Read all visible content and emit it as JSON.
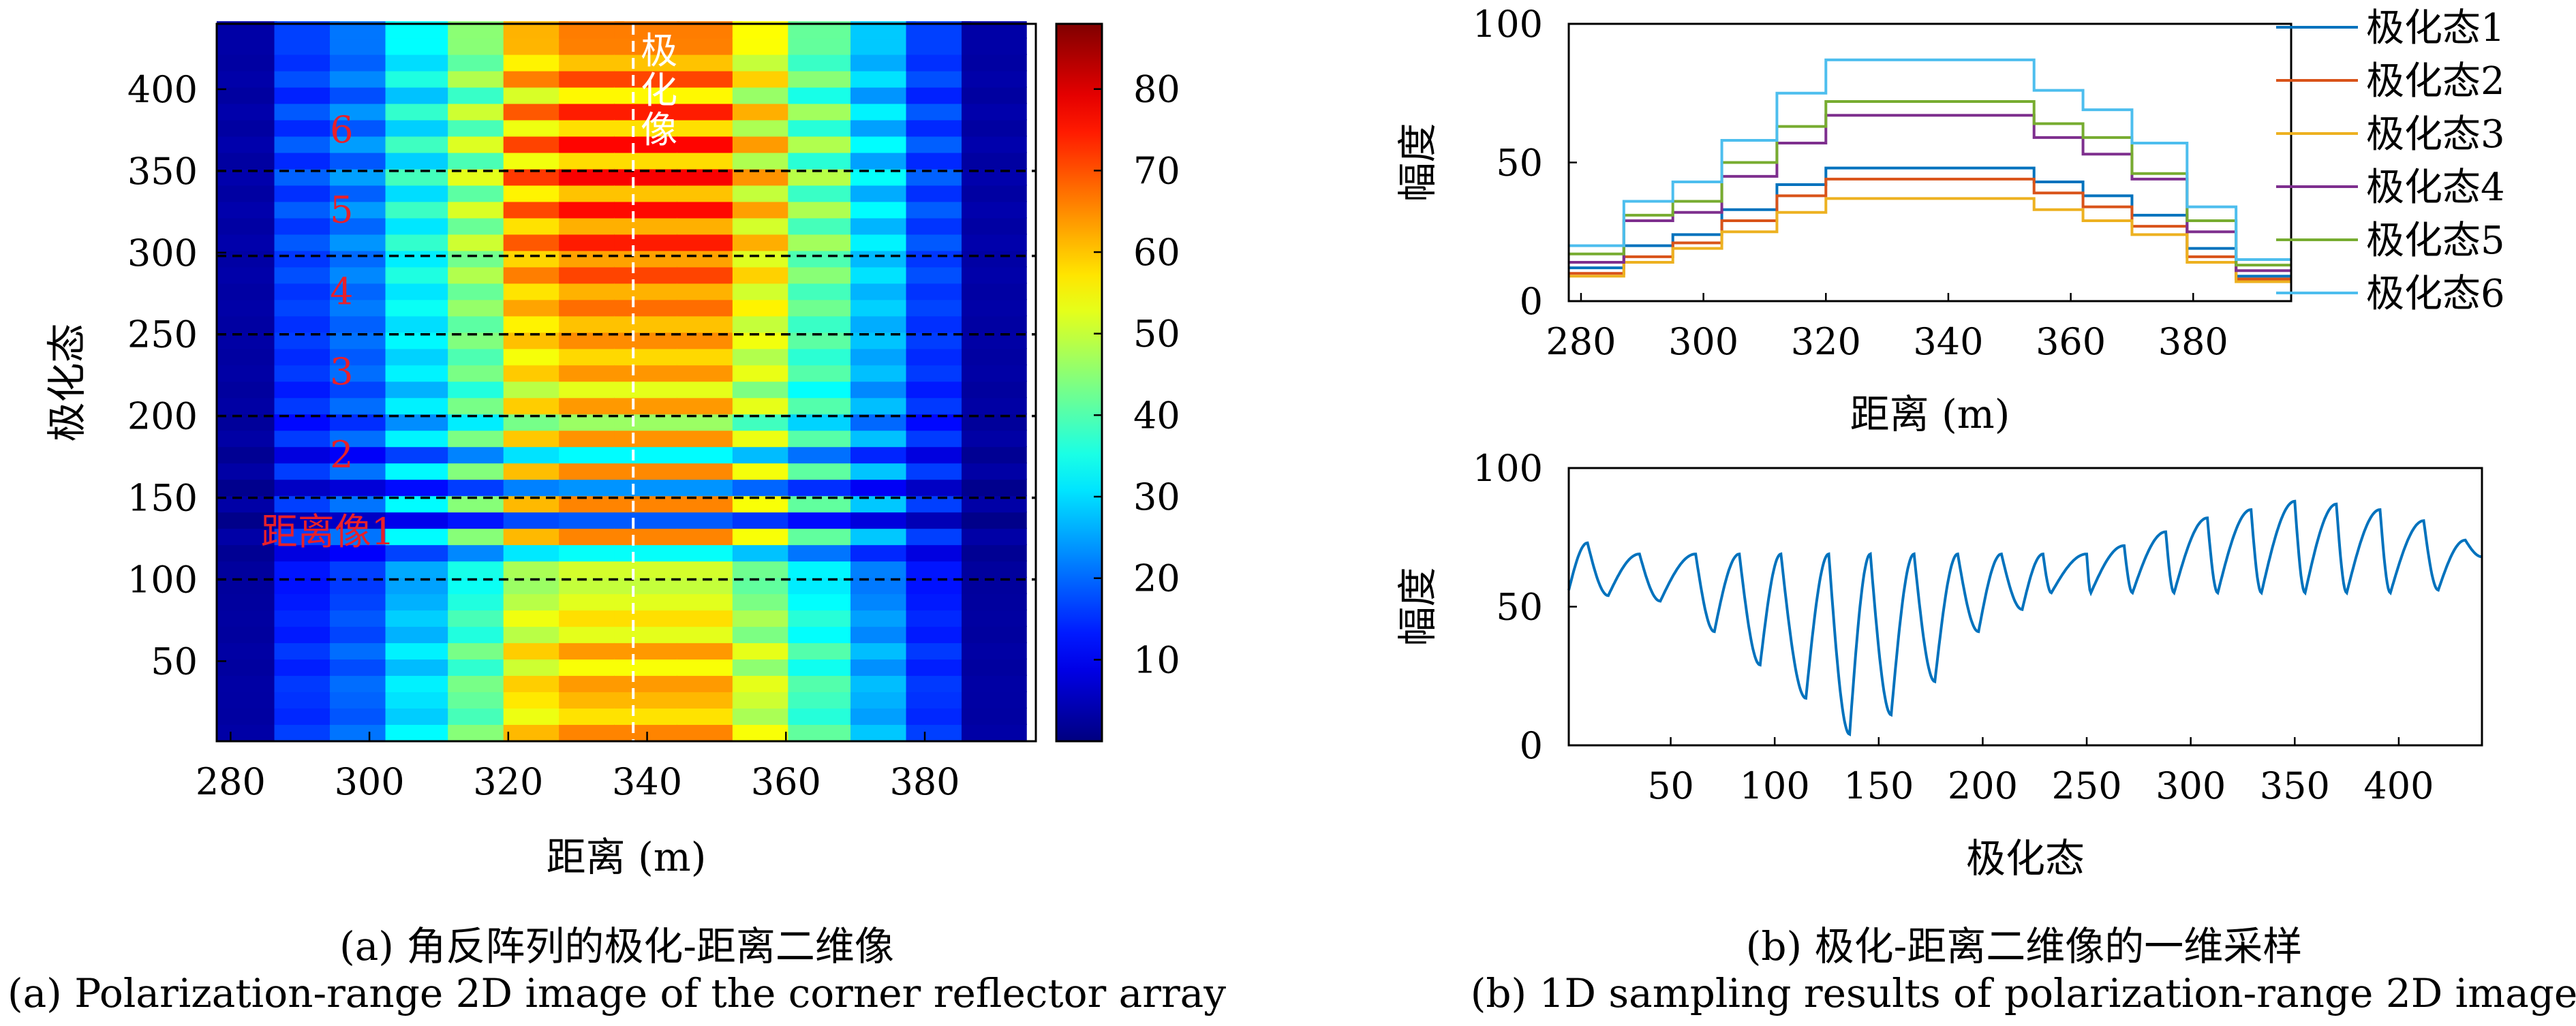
{
  "captions": {
    "a_cn": "(a) 角反阵列的极化-距离二维像",
    "a_en": "(a) Polarization-range 2D image of the corner reflector array",
    "b_cn": "(b) 极化-距离二维像的一维采样",
    "b_en": "(b) 1D sampling results of polarization-range 2D image"
  },
  "colors": {
    "s1": "#0072BD",
    "s2": "#D95319",
    "s3": "#EDB120",
    "s4": "#7E2F8E",
    "s5": "#77AC30",
    "s6": "#4DBEEE",
    "label_red": "#E8202A",
    "dash": "#000000"
  },
  "chart_data": [
    {
      "id": "a",
      "type": "heatmap",
      "colormap": "jet",
      "xlabel": "距离 (m)",
      "ylabel": "极化态",
      "xlim": [
        278,
        396
      ],
      "ylim": [
        1,
        440
      ],
      "xticks": [
        280,
        300,
        320,
        340,
        360,
        380
      ],
      "yticks": [
        50,
        100,
        150,
        200,
        250,
        300,
        350,
        400
      ],
      "colorbar": {
        "lim": [
          0,
          88
        ],
        "ticks": [
          10,
          20,
          30,
          40,
          50,
          60,
          70,
          80
        ]
      },
      "range_bins": [
        282,
        291,
        299,
        307,
        316,
        324,
        332,
        340,
        349,
        357,
        365,
        374,
        382,
        390
      ],
      "pattern_profile": [
        0.05,
        0.25,
        0.32,
        0.5,
        0.68,
        0.93,
        1.0,
        1.0,
        1.0,
        0.83,
        0.63,
        0.43,
        0.25,
        0.05
      ],
      "state_boundaries": [
        100,
        150,
        200,
        250,
        298,
        350
      ],
      "region_labels": [
        {
          "text": "距离像1",
          "x": 294,
          "y": 129
        },
        {
          "text": "2",
          "x": 296,
          "y": 176
        },
        {
          "text": "3",
          "x": 296,
          "y": 227
        },
        {
          "text": "4",
          "x": 296,
          "y": 276
        },
        {
          "text": "5",
          "x": 296,
          "y": 326
        },
        {
          "text": "6",
          "x": 296,
          "y": 375
        }
      ],
      "marker_line": {
        "x": 338,
        "label": [
          "极",
          "化",
          "像"
        ]
      }
    },
    {
      "id": "b1",
      "type": "line",
      "xlabel": "距离 (m)",
      "ylabel": "幅度",
      "xlim": [
        278,
        396
      ],
      "ylim": [
        0,
        100
      ],
      "xticks": [
        280,
        300,
        320,
        340,
        360,
        380
      ],
      "yticks": [
        0,
        50,
        100
      ],
      "x_edges": [
        278,
        287,
        295,
        303,
        312,
        320,
        328,
        337,
        345,
        354,
        362,
        370,
        379,
        387,
        396
      ],
      "series": [
        {
          "name": "极化态1",
          "values": [
            12,
            20,
            24,
            33,
            42,
            48,
            48,
            48,
            48,
            43,
            38,
            31,
            19,
            9
          ]
        },
        {
          "name": "极化态2",
          "values": [
            10,
            16,
            21,
            29,
            38,
            44,
            44,
            44,
            44,
            39,
            34,
            27,
            16,
            8
          ]
        },
        {
          "name": "极化态3",
          "values": [
            9,
            14,
            19,
            25,
            32,
            37,
            37,
            37,
            37,
            33,
            29,
            24,
            14,
            7
          ]
        },
        {
          "name": "极化态4",
          "values": [
            14,
            29,
            32,
            45,
            57,
            67,
            67,
            67,
            67,
            59,
            53,
            44,
            25,
            11
          ]
        },
        {
          "name": "极化态5",
          "values": [
            17,
            31,
            36,
            50,
            63,
            72,
            72,
            72,
            72,
            64,
            59,
            46,
            29,
            13
          ]
        },
        {
          "name": "极化态6",
          "values": [
            20,
            36,
            43,
            58,
            75,
            87,
            87,
            87,
            87,
            76,
            69,
            57,
            34,
            15
          ]
        }
      ]
    },
    {
      "id": "b2",
      "type": "line",
      "xlabel": "极化态",
      "ylabel": "幅度",
      "xlim": [
        1,
        440
      ],
      "ylim": [
        0,
        100
      ],
      "xticks": [
        50,
        100,
        150,
        200,
        250,
        300,
        350,
        400
      ],
      "yticks": [
        0,
        50,
        100
      ],
      "peaks": [
        {
          "x": 1,
          "y": 56
        },
        {
          "x": 10,
          "y": 73
        },
        {
          "x": 20,
          "y": 54
        },
        {
          "x": 35,
          "y": 69
        },
        {
          "x": 45,
          "y": 52
        },
        {
          "x": 62,
          "y": 69
        },
        {
          "x": 71,
          "y": 41
        },
        {
          "x": 83,
          "y": 69
        },
        {
          "x": 93,
          "y": 29
        },
        {
          "x": 103,
          "y": 69
        },
        {
          "x": 115,
          "y": 17
        },
        {
          "x": 126,
          "y": 69
        },
        {
          "x": 136,
          "y": 4
        },
        {
          "x": 146,
          "y": 69
        },
        {
          "x": 156,
          "y": 11
        },
        {
          "x": 167,
          "y": 69
        },
        {
          "x": 177,
          "y": 23
        },
        {
          "x": 188,
          "y": 69
        },
        {
          "x": 198,
          "y": 41
        },
        {
          "x": 209,
          "y": 69
        },
        {
          "x": 219,
          "y": 49
        },
        {
          "x": 229,
          "y": 69
        },
        {
          "x": 233,
          "y": 55
        },
        {
          "x": 250,
          "y": 69
        },
        {
          "x": 252,
          "y": 55
        },
        {
          "x": 268,
          "y": 72
        },
        {
          "x": 272,
          "y": 55
        },
        {
          "x": 288,
          "y": 77
        },
        {
          "x": 292,
          "y": 55
        },
        {
          "x": 308,
          "y": 82
        },
        {
          "x": 313,
          "y": 55
        },
        {
          "x": 329,
          "y": 85
        },
        {
          "x": 334,
          "y": 55
        },
        {
          "x": 350,
          "y": 88
        },
        {
          "x": 355,
          "y": 55
        },
        {
          "x": 370,
          "y": 87
        },
        {
          "x": 375,
          "y": 55
        },
        {
          "x": 391,
          "y": 85
        },
        {
          "x": 396,
          "y": 55
        },
        {
          "x": 412,
          "y": 81
        },
        {
          "x": 419,
          "y": 56
        },
        {
          "x": 432,
          "y": 74
        },
        {
          "x": 440,
          "y": 68
        }
      ]
    }
  ]
}
